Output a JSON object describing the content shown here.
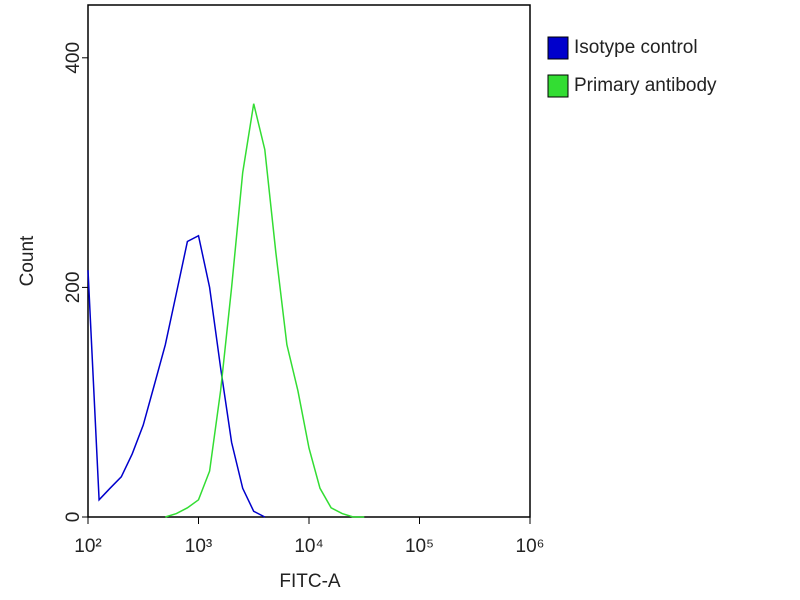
{
  "chart_data": {
    "type": "line",
    "xlabel": "FITC-A",
    "ylabel": "Count",
    "x": [
      100,
      126,
      158,
      200,
      251,
      316,
      398,
      501,
      631,
      794,
      1000,
      1259,
      1585,
      1995,
      2512,
      3162,
      3981,
      5012,
      6310,
      7943,
      10000,
      12589,
      15849,
      19953,
      25119,
      31623,
      39811
    ],
    "series": [
      {
        "name": "Isotype control",
        "color": "#0000cc",
        "values": [
          215,
          15,
          25,
          35,
          55,
          80,
          115,
          150,
          195,
          240,
          245,
          200,
          130,
          65,
          25,
          5,
          0,
          null,
          null,
          null,
          null,
          null,
          null,
          null,
          null,
          null,
          null
        ]
      },
      {
        "name": "Primary antibody",
        "color": "#33dd33",
        "values": [
          null,
          null,
          null,
          null,
          null,
          null,
          null,
          0,
          3,
          8,
          15,
          40,
          110,
          200,
          300,
          360,
          320,
          230,
          150,
          110,
          60,
          25,
          8,
          3,
          0,
          0,
          null
        ]
      }
    ],
    "log_x": true,
    "xlim": [
      100,
      1000000
    ],
    "xticks": [
      {
        "value": 100,
        "label": "10²"
      },
      {
        "value": 1000,
        "label": "10³"
      },
      {
        "value": 10000,
        "label": "10⁴"
      },
      {
        "value": 100000,
        "label": "10⁵"
      },
      {
        "value": 1000000,
        "label": "10⁶"
      }
    ],
    "ylim": [
      0,
      446
    ],
    "yticks": [
      0,
      200,
      400
    ],
    "legend": "outside-right"
  }
}
